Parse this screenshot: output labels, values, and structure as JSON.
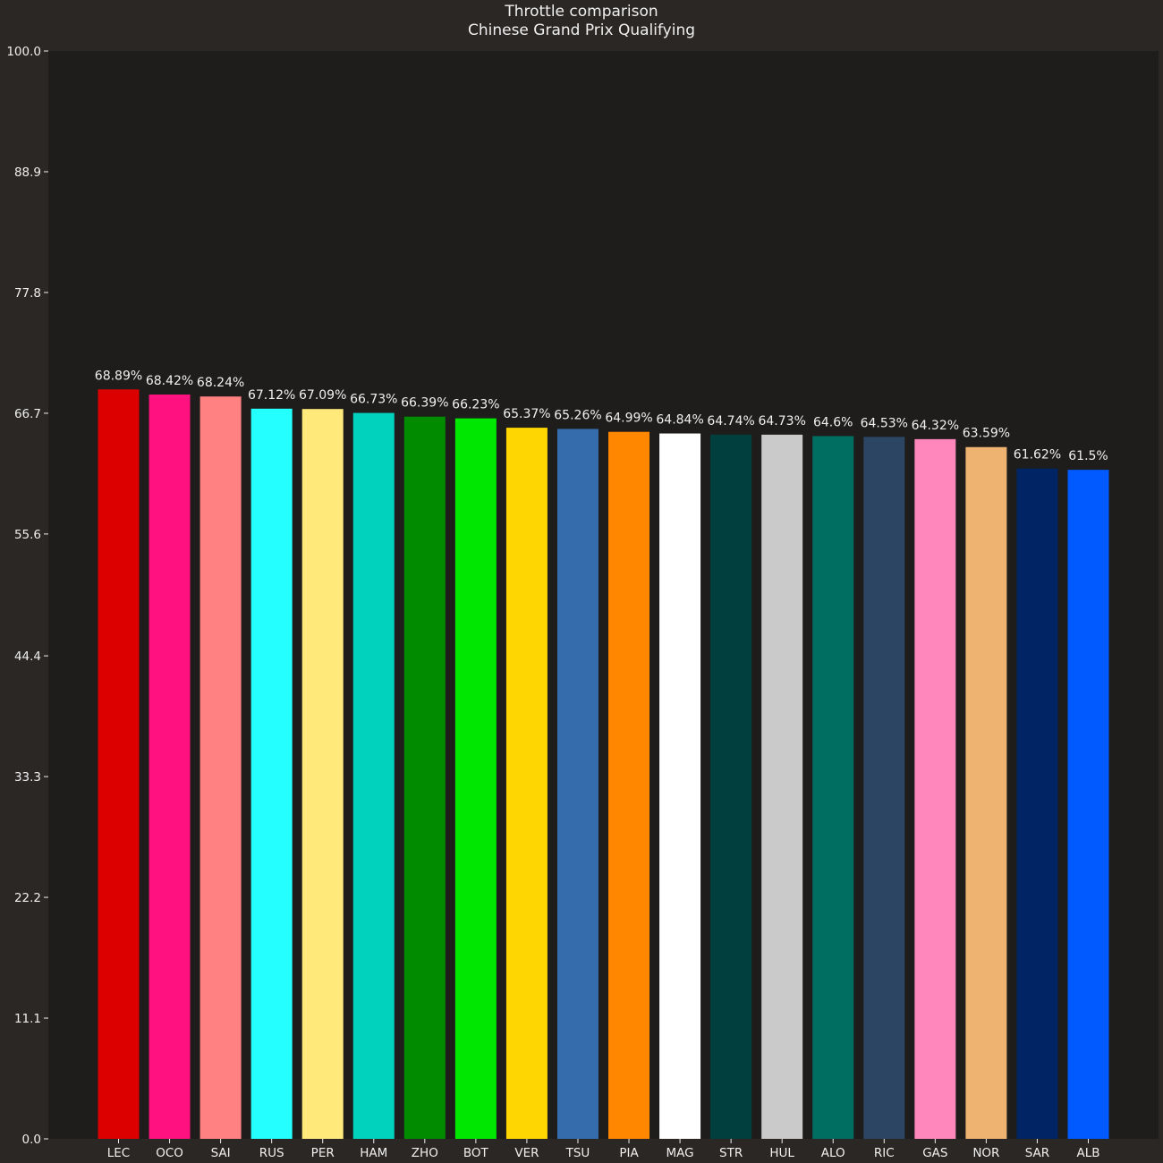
{
  "colors": {
    "figure_background": "#2a2725",
    "plot_background": "#1e1d1b",
    "text": "#f0f0f0",
    "tick_color": "#f0f0f0"
  },
  "chart_data": {
    "type": "bar",
    "title": "Throttle comparison",
    "subtitle": "Chinese Grand Prix Qualifying",
    "xlabel": "",
    "ylabel": "",
    "ylim": [
      0,
      100
    ],
    "yticks": [
      "0.0",
      "11.1",
      "22.2",
      "33.3",
      "44.4",
      "55.6",
      "66.7",
      "77.8",
      "88.9",
      "100.0"
    ],
    "grid": false,
    "categories": [
      "LEC",
      "OCO",
      "SAI",
      "RUS",
      "PER",
      "HAM",
      "ZHO",
      "BOT",
      "VER",
      "TSU",
      "PIA",
      "MAG",
      "STR",
      "HUL",
      "ALO",
      "RIC",
      "GAS",
      "NOR",
      "SAR",
      "ALB"
    ],
    "values": [
      68.89,
      68.42,
      68.24,
      67.12,
      67.09,
      66.73,
      66.39,
      66.23,
      65.37,
      65.26,
      64.99,
      64.84,
      64.74,
      64.73,
      64.6,
      64.53,
      64.32,
      63.59,
      61.62,
      61.5
    ],
    "value_labels": [
      "68.89%",
      "68.42%",
      "68.24%",
      "67.12%",
      "67.09%",
      "66.73%",
      "66.39%",
      "66.23%",
      "65.37%",
      "65.26%",
      "64.99%",
      "64.84%",
      "64.74%",
      "64.73%",
      "64.6%",
      "64.53%",
      "64.32%",
      "63.59%",
      "61.62%",
      "61.5%"
    ],
    "bar_colors": [
      "#dc0000",
      "#ff1280",
      "#ff8181",
      "#24ffff",
      "#ffe97a",
      "#00d2be",
      "#008b00",
      "#00e701",
      "#fed602",
      "#356cac",
      "#ff8700",
      "#ffffff",
      "#003f3d",
      "#cacaca",
      "#006f62",
      "#2b4562",
      "#ff87bc",
      "#eeb370",
      "#012564",
      "#005aff"
    ]
  }
}
